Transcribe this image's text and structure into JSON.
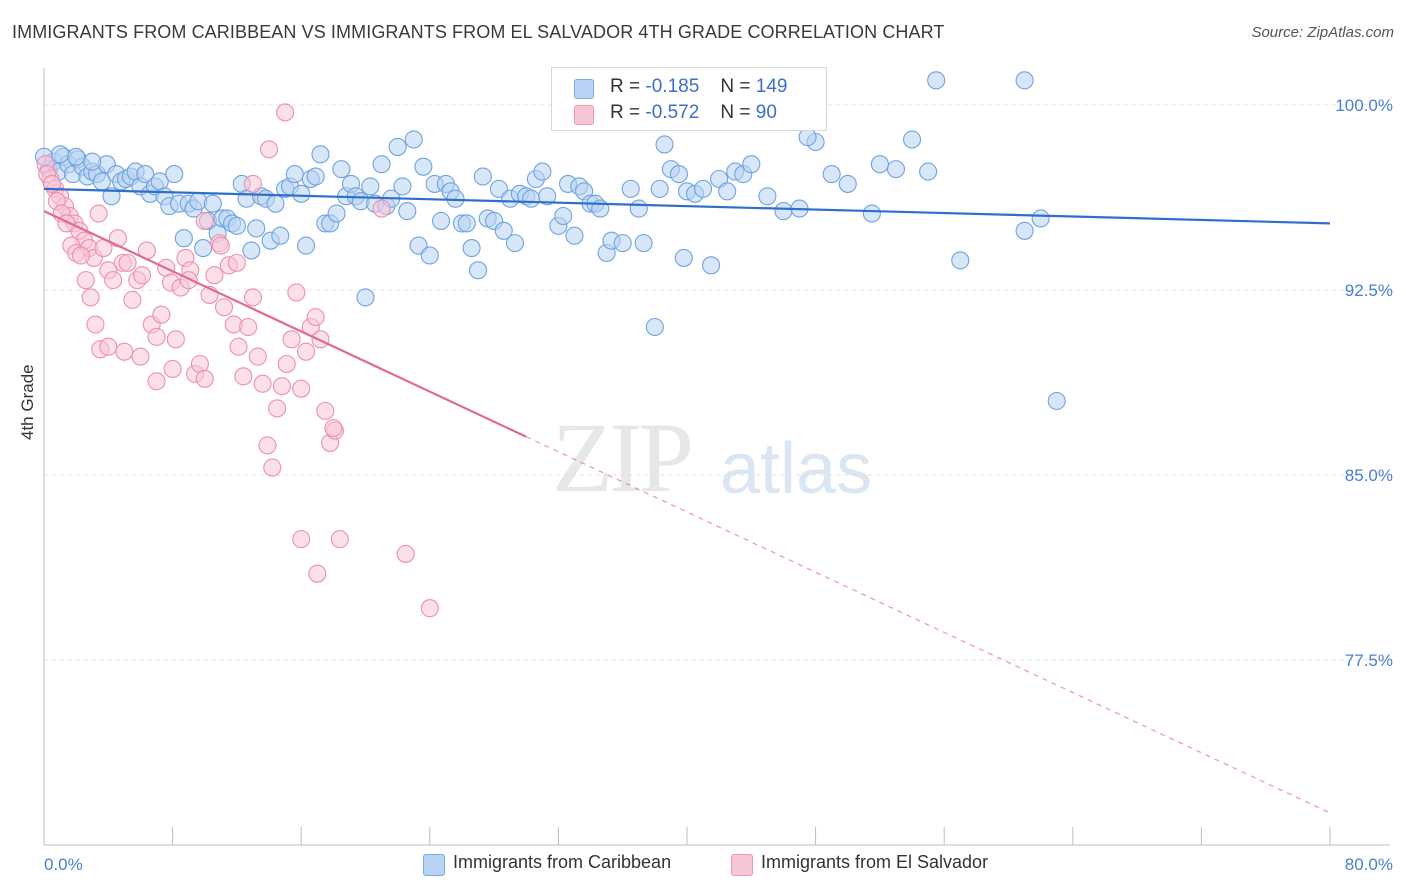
{
  "title": "IMMIGRANTS FROM CARIBBEAN VS IMMIGRANTS FROM EL SALVADOR 4TH GRADE CORRELATION CHART",
  "source": "Source: ZipAtlas.com",
  "watermark": {
    "zip": "ZIP",
    "atlas": "atlas"
  },
  "stats": [
    {
      "r_label": "R =",
      "r_value": "-0.185",
      "n_label": "N =",
      "n_value": "149",
      "color": "#a8c8f0"
    },
    {
      "r_label": "R =",
      "r_value": "-0.572",
      "n_label": "N =",
      "n_value": "90",
      "color": "#f5b8cc"
    }
  ],
  "chart_data": {
    "type": "scatter",
    "ylabel": "4th Grade",
    "xlim": [
      0,
      80
    ],
    "ylim": [
      70.0,
      101.5
    ],
    "x_tick_labels": [
      "0.0%",
      "80.0%"
    ],
    "y_ticks": [
      {
        "value": 100.0,
        "label": "100.0%"
      },
      {
        "value": 92.5,
        "label": "92.5%"
      },
      {
        "value": 85.0,
        "label": "85.0%"
      },
      {
        "value": 77.5,
        "label": "77.5%"
      }
    ],
    "grid": true,
    "legend_placement": "bottom",
    "series": [
      {
        "name": "Immigrants from Caribbean",
        "color": "#6fa3e0",
        "fill": "#b8d3f3",
        "trend": {
          "x": [
            0,
            80
          ],
          "y": [
            96.6,
            95.2
          ],
          "solid_until": 80,
          "color": "#2f6fcc"
        },
        "points": [
          [
            0.3,
            97.4
          ],
          [
            0.6,
            97.7
          ],
          [
            0.9,
            97.3
          ],
          [
            1.2,
            97.9
          ],
          [
            1.5,
            97.6
          ],
          [
            1.8,
            97.2
          ],
          [
            2.1,
            97.8
          ],
          [
            2.4,
            97.5
          ],
          [
            2.7,
            97.1
          ],
          [
            3.0,
            97.3
          ],
          [
            3.3,
            97.2
          ],
          [
            3.6,
            96.9
          ],
          [
            3.9,
            97.6
          ],
          [
            4.2,
            96.3
          ],
          [
            4.5,
            97.2
          ],
          [
            4.8,
            96.9
          ],
          [
            5.1,
            97.0
          ],
          [
            5.4,
            97.1
          ],
          [
            5.7,
            97.3
          ],
          [
            6.0,
            96.7
          ],
          [
            6.3,
            97.2
          ],
          [
            6.6,
            96.4
          ],
          [
            6.9,
            96.7
          ],
          [
            7.2,
            96.9
          ],
          [
            7.5,
            96.3
          ],
          [
            7.8,
            95.9
          ],
          [
            8.1,
            97.2
          ],
          [
            8.4,
            96.0
          ],
          [
            8.7,
            94.6
          ],
          [
            9.0,
            96.0
          ],
          [
            9.3,
            95.8
          ],
          [
            9.6,
            96.1
          ],
          [
            9.9,
            94.2
          ],
          [
            10.2,
            95.3
          ],
          [
            10.5,
            96.0
          ],
          [
            10.8,
            94.8
          ],
          [
            11.1,
            95.4
          ],
          [
            11.4,
            95.4
          ],
          [
            11.7,
            95.2
          ],
          [
            12.0,
            95.1
          ],
          [
            12.3,
            96.8
          ],
          [
            12.6,
            96.2
          ],
          [
            12.9,
            94.1
          ],
          [
            13.2,
            95.0
          ],
          [
            13.5,
            96.3
          ],
          [
            13.8,
            96.2
          ],
          [
            14.1,
            94.5
          ],
          [
            14.4,
            96.0
          ],
          [
            14.7,
            94.7
          ],
          [
            15.0,
            96.6
          ],
          [
            15.3,
            96.7
          ],
          [
            15.6,
            97.2
          ],
          [
            16.0,
            96.4
          ],
          [
            16.3,
            94.3
          ],
          [
            16.6,
            97.0
          ],
          [
            16.9,
            97.1
          ],
          [
            17.2,
            98.0
          ],
          [
            17.5,
            95.2
          ],
          [
            17.8,
            95.2
          ],
          [
            18.2,
            95.6
          ],
          [
            18.5,
            97.4
          ],
          [
            18.8,
            96.3
          ],
          [
            19.1,
            96.8
          ],
          [
            19.4,
            96.3
          ],
          [
            19.7,
            96.1
          ],
          [
            20.0,
            92.2
          ],
          [
            20.3,
            96.7
          ],
          [
            20.6,
            96.0
          ],
          [
            21.0,
            97.6
          ],
          [
            21.3,
            95.9
          ],
          [
            21.6,
            96.2
          ],
          [
            22.0,
            98.3
          ],
          [
            22.3,
            96.7
          ],
          [
            22.6,
            95.7
          ],
          [
            23.0,
            98.6
          ],
          [
            23.3,
            94.3
          ],
          [
            23.6,
            97.5
          ],
          [
            24.0,
            93.9
          ],
          [
            24.3,
            96.8
          ],
          [
            24.7,
            95.3
          ],
          [
            25.0,
            96.8
          ],
          [
            25.3,
            96.5
          ],
          [
            25.6,
            96.2
          ],
          [
            26.0,
            95.2
          ],
          [
            26.3,
            95.2
          ],
          [
            26.6,
            94.2
          ],
          [
            27.0,
            93.3
          ],
          [
            27.3,
            97.1
          ],
          [
            27.6,
            95.4
          ],
          [
            28.0,
            95.3
          ],
          [
            28.3,
            96.6
          ],
          [
            28.6,
            94.9
          ],
          [
            29.0,
            96.2
          ],
          [
            29.3,
            94.4
          ],
          [
            29.6,
            96.4
          ],
          [
            30.0,
            96.3
          ],
          [
            30.3,
            96.2
          ],
          [
            30.6,
            97.0
          ],
          [
            31.0,
            97.3
          ],
          [
            31.3,
            96.3
          ],
          [
            32.0,
            95.1
          ],
          [
            32.3,
            95.5
          ],
          [
            32.6,
            96.8
          ],
          [
            33.0,
            94.7
          ],
          [
            33.3,
            96.7
          ],
          [
            33.6,
            96.5
          ],
          [
            34.0,
            96.0
          ],
          [
            34.3,
            96.0
          ],
          [
            34.6,
            95.8
          ],
          [
            35.0,
            94.0
          ],
          [
            35.3,
            94.5
          ],
          [
            36.0,
            94.4
          ],
          [
            36.5,
            96.6
          ],
          [
            37.0,
            95.8
          ],
          [
            37.3,
            94.4
          ],
          [
            38.0,
            91.0
          ],
          [
            38.3,
            96.6
          ],
          [
            38.6,
            98.4
          ],
          [
            39.0,
            97.4
          ],
          [
            39.5,
            97.2
          ],
          [
            40.0,
            96.5
          ],
          [
            40.5,
            96.4
          ],
          [
            41.0,
            96.6
          ],
          [
            41.5,
            93.5
          ],
          [
            42.0,
            97.0
          ],
          [
            42.5,
            96.5
          ],
          [
            43.0,
            97.3
          ],
          [
            43.5,
            97.2
          ],
          [
            44.0,
            97.6
          ],
          [
            45.0,
            96.3
          ],
          [
            46.0,
            95.7
          ],
          [
            47.0,
            95.8
          ],
          [
            48.0,
            98.5
          ],
          [
            49.0,
            97.2
          ],
          [
            50.0,
            96.8
          ],
          [
            51.5,
            95.6
          ],
          [
            52.0,
            97.6
          ],
          [
            53.0,
            97.4
          ],
          [
            54.0,
            98.6
          ],
          [
            55.0,
            97.3
          ],
          [
            57.0,
            93.7
          ],
          [
            61.0,
            94.9
          ],
          [
            62.0,
            95.4
          ],
          [
            63.0,
            88.0
          ],
          [
            0.0,
            97.9
          ],
          [
            1.0,
            98.0
          ],
          [
            2.0,
            97.9
          ],
          [
            3.0,
            97.7
          ],
          [
            55.5,
            101.0
          ],
          [
            61.0,
            101.0
          ],
          [
            47.5,
            98.7
          ],
          [
            39.8,
            93.8
          ]
        ]
      },
      {
        "name": "Immigrants from El Salvador",
        "color": "#ee8fb0",
        "fill": "#f7c6d6",
        "trend": {
          "x": [
            0,
            80
          ],
          "y": [
            95.7,
            71.3
          ],
          "solid_until": 30,
          "color": "#e06a93"
        },
        "points": [
          [
            0.1,
            97.6
          ],
          [
            0.4,
            97.0
          ],
          [
            0.7,
            96.6
          ],
          [
            1.0,
            96.3
          ],
          [
            1.3,
            95.9
          ],
          [
            1.6,
            95.5
          ],
          [
            1.9,
            95.2
          ],
          [
            2.2,
            94.9
          ],
          [
            2.5,
            94.5
          ],
          [
            2.8,
            94.2
          ],
          [
            3.1,
            93.8
          ],
          [
            3.4,
            95.6
          ],
          [
            3.7,
            94.2
          ],
          [
            4.0,
            93.3
          ],
          [
            4.3,
            92.9
          ],
          [
            4.6,
            94.6
          ],
          [
            4.9,
            93.6
          ],
          [
            5.2,
            93.6
          ],
          [
            5.5,
            92.1
          ],
          [
            5.8,
            92.9
          ],
          [
            6.1,
            93.1
          ],
          [
            6.4,
            94.1
          ],
          [
            6.7,
            91.1
          ],
          [
            7.0,
            90.6
          ],
          [
            7.3,
            91.5
          ],
          [
            7.6,
            93.4
          ],
          [
            7.9,
            92.8
          ],
          [
            8.2,
            90.5
          ],
          [
            8.5,
            92.6
          ],
          [
            8.8,
            93.8
          ],
          [
            9.1,
            93.3
          ],
          [
            9.4,
            89.1
          ],
          [
            9.7,
            89.5
          ],
          [
            10.0,
            88.9
          ],
          [
            10.3,
            92.3
          ],
          [
            10.6,
            93.1
          ],
          [
            10.9,
            94.4
          ],
          [
            11.2,
            91.8
          ],
          [
            11.5,
            93.5
          ],
          [
            11.8,
            91.1
          ],
          [
            12.1,
            90.2
          ],
          [
            12.4,
            89.0
          ],
          [
            12.7,
            91.0
          ],
          [
            13.0,
            92.2
          ],
          [
            13.3,
            89.8
          ],
          [
            13.6,
            88.7
          ],
          [
            13.9,
            86.2
          ],
          [
            14.2,
            85.3
          ],
          [
            14.5,
            87.7
          ],
          [
            14.8,
            88.6
          ],
          [
            15.1,
            89.5
          ],
          [
            15.4,
            90.5
          ],
          [
            15.7,
            92.4
          ],
          [
            16.0,
            88.5
          ],
          [
            16.3,
            90.0
          ],
          [
            16.6,
            91.0
          ],
          [
            16.9,
            91.4
          ],
          [
            17.2,
            90.5
          ],
          [
            17.5,
            87.6
          ],
          [
            17.8,
            86.3
          ],
          [
            18.1,
            86.8
          ],
          [
            18.4,
            82.4
          ],
          [
            0.2,
            97.2
          ],
          [
            0.5,
            96.8
          ],
          [
            0.8,
            96.1
          ],
          [
            1.1,
            95.6
          ],
          [
            1.4,
            95.2
          ],
          [
            1.7,
            94.3
          ],
          [
            2.0,
            94.0
          ],
          [
            2.3,
            93.9
          ],
          [
            2.6,
            92.9
          ],
          [
            2.9,
            92.2
          ],
          [
            3.2,
            91.1
          ],
          [
            3.5,
            90.1
          ],
          [
            4.0,
            90.2
          ],
          [
            5.0,
            90.0
          ],
          [
            6.0,
            89.8
          ],
          [
            7.0,
            88.8
          ],
          [
            8.0,
            89.3
          ],
          [
            9.0,
            92.9
          ],
          [
            10.0,
            95.3
          ],
          [
            11.0,
            94.3
          ],
          [
            12.0,
            93.6
          ],
          [
            13.0,
            96.8
          ],
          [
            14.0,
            98.2
          ],
          [
            15.0,
            99.7
          ],
          [
            16.0,
            82.4
          ],
          [
            17.0,
            81.0
          ],
          [
            22.5,
            81.8
          ],
          [
            24.0,
            79.6
          ],
          [
            21.0,
            95.8
          ],
          [
            18.0,
            86.9
          ]
        ]
      }
    ]
  },
  "legend": [
    {
      "label": "Immigrants from Caribbean",
      "color": "#b8d3f3",
      "border": "#7aaae3"
    },
    {
      "label": "Immigrants from El Salvador",
      "color": "#f7c6d6",
      "border": "#ee98b6"
    }
  ]
}
